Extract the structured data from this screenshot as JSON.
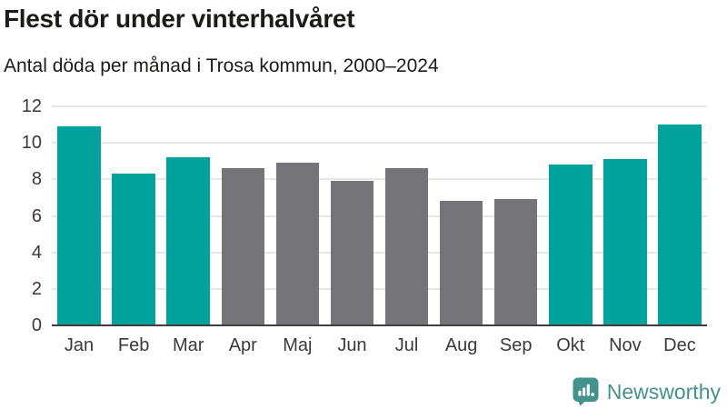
{
  "chart_data": {
    "type": "bar",
    "title": "Flest dör under vinterhalvåret",
    "subtitle": "Antal döda per månad i Trosa kommun, 2000–2024",
    "categories": [
      "Jan",
      "Feb",
      "Mar",
      "Apr",
      "Maj",
      "Jun",
      "Jul",
      "Aug",
      "Sep",
      "Okt",
      "Nov",
      "Dec"
    ],
    "values": [
      10.9,
      8.3,
      9.2,
      8.6,
      8.9,
      7.9,
      8.6,
      6.8,
      6.9,
      8.8,
      9.1,
      11.0
    ],
    "highlighted": [
      true,
      true,
      true,
      false,
      false,
      false,
      false,
      false,
      false,
      true,
      true,
      true
    ],
    "colors": {
      "highlight": "#00a39b",
      "normal": "#747479"
    },
    "xlabel": "",
    "ylabel": "",
    "ylim": [
      0,
      12
    ],
    "yticks": [
      0,
      2,
      4,
      6,
      8,
      10,
      12
    ],
    "grid": "horizontal",
    "legend": "none"
  },
  "branding": {
    "logo_text": "Newsworthy",
    "logo_color": "#43928d",
    "icon": "newsworthy-speech-bubble-bars-icon"
  }
}
